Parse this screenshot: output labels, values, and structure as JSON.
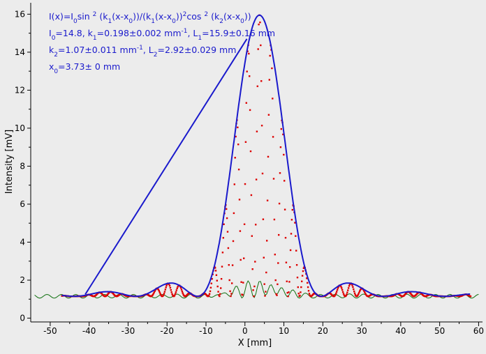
{
  "chart_data": {
    "type": "scatter",
    "xlabel": "X [mm]",
    "ylabel": "Intensity [mV]",
    "xlim": [
      -55,
      61
    ],
    "ylim": [
      -0.2,
      16.6
    ],
    "x_ticks": [
      -50,
      -40,
      -30,
      -20,
      -10,
      0,
      10,
      20,
      30,
      40,
      50,
      60
    ],
    "y_ticks": [
      0,
      2,
      4,
      6,
      8,
      10,
      12,
      14,
      16
    ],
    "grid": false,
    "annotation": {
      "line1": {
        "parts": [
          {
            "t": "I(x)=I"
          },
          {
            "t": "0",
            "sub": true
          },
          {
            "t": "sin "
          },
          {
            "t": "2",
            "sup": true
          },
          {
            "t": " (k"
          },
          {
            "t": "1",
            "sub": true
          },
          {
            "t": "(x-x"
          },
          {
            "t": "0",
            "sub": true
          },
          {
            "t": "))/(k"
          },
          {
            "t": "1",
            "sub": true
          },
          {
            "t": "(x-x"
          },
          {
            "t": "0",
            "sub": true
          },
          {
            "t": "))"
          },
          {
            "t": "2",
            "sup": true
          },
          {
            "t": "cos "
          },
          {
            "t": "2",
            "sup": true
          },
          {
            "t": " (k"
          },
          {
            "t": "2",
            "sub": true
          },
          {
            "t": "(x-x"
          },
          {
            "t": "0",
            "sub": true
          },
          {
            "t": "))"
          }
        ]
      },
      "line2": {
        "parts": [
          {
            "t": "I"
          },
          {
            "t": "0",
            "sub": true
          },
          {
            "t": "=14.8,  k"
          },
          {
            "t": "1",
            "sub": true
          },
          {
            "t": "=0.198±0.002 mm"
          },
          {
            "t": "-1",
            "sup": true
          },
          {
            "t": ",   L"
          },
          {
            "t": "1",
            "sub": true
          },
          {
            "t": "=15.9±0.16 mm"
          }
        ]
      },
      "line3": {
        "parts": [
          {
            "t": "k"
          },
          {
            "t": "2",
            "sub": true
          },
          {
            "t": "=1.07±0.011 mm"
          },
          {
            "t": "-1",
            "sup": true
          },
          {
            "t": ",   L"
          },
          {
            "t": "2",
            "sub": true
          },
          {
            "t": "=2.92±0.029 mm"
          }
        ]
      },
      "line4": {
        "parts": [
          {
            "t": "x"
          },
          {
            "t": "0",
            "sub": true
          },
          {
            "t": "=3.73±  0 mm"
          }
        ]
      }
    },
    "fit_params": {
      "I0": 14.8,
      "k1": 0.198,
      "k2": 1.07,
      "x0": 3.73,
      "background": 1.15
    },
    "series": [
      {
        "kind": "measured",
        "color": "#dd0000",
        "x_range": [
          -47,
          58
        ],
        "step": 0.16
      },
      {
        "kind": "background",
        "color": "#107010",
        "x_range": [
          -54,
          60
        ],
        "step": 0.4
      },
      {
        "kind": "envelope",
        "color": "#1a1acc",
        "x_range": [
          -47,
          58
        ],
        "step": 0.2
      },
      {
        "kind": "connector",
        "color": "#1a1acc",
        "x": [
          -41,
          0.5
        ],
        "y": [
          1.25,
          14.7
        ]
      }
    ],
    "colors": {
      "background": "#ececec",
      "axis": "#000000",
      "annotation_text": "#1a1acc"
    }
  }
}
